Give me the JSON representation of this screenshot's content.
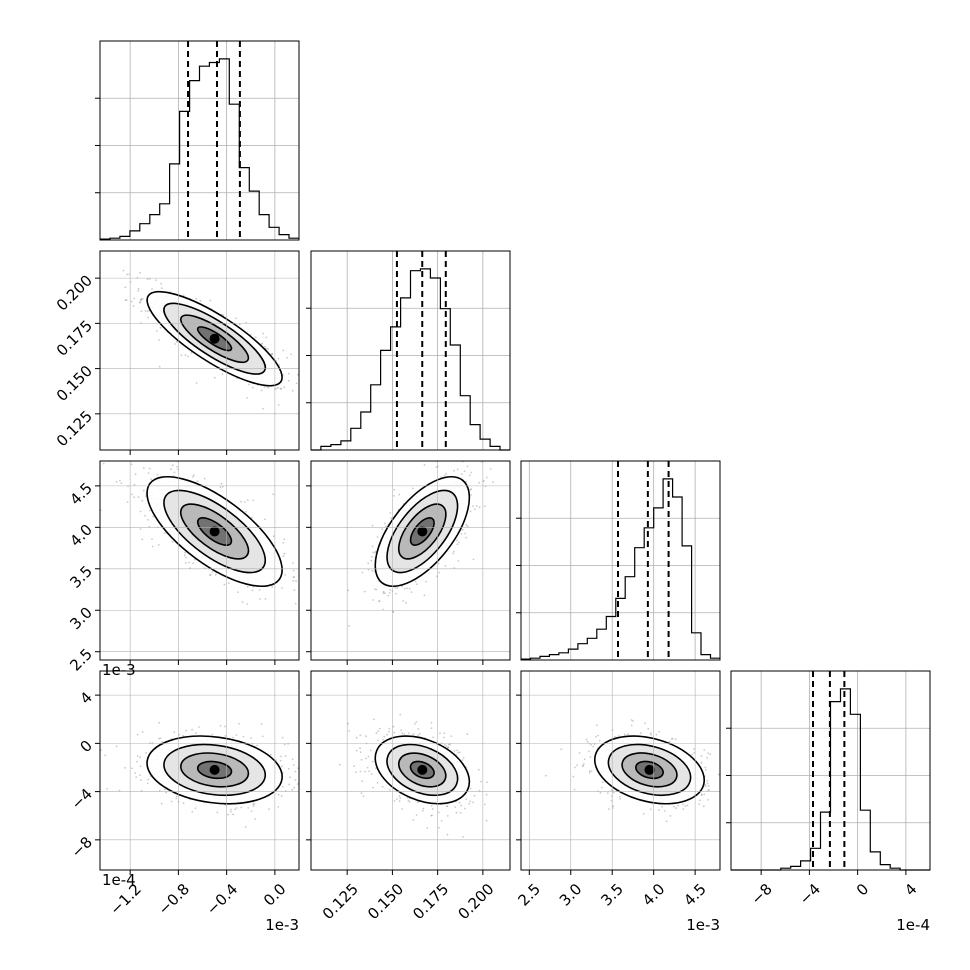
{
  "chart_data": {
    "type": "corner",
    "grid": true,
    "parameters": [
      {
        "offset": "1e-3",
        "range": [
          -1.45,
          0.2
        ],
        "ticks": [
          {
            "v": -1.2,
            "label": "−1.2"
          },
          {
            "v": -0.8,
            "label": "−0.8"
          },
          {
            "v": -0.4,
            "label": "−0.4"
          },
          {
            "v": 0.0,
            "label": "0.0"
          }
        ]
      },
      {
        "offset": "",
        "range": [
          0.105,
          0.215
        ],
        "ticks": [
          {
            "v": 0.125,
            "label": "0.125"
          },
          {
            "v": 0.15,
            "label": "0.150"
          },
          {
            "v": 0.175,
            "label": "0.175"
          },
          {
            "v": 0.2,
            "label": "0.200"
          }
        ]
      },
      {
        "offset": "1e-3",
        "range": [
          2.4,
          4.8
        ],
        "ticks": [
          {
            "v": 2.5,
            "label": "2.5"
          },
          {
            "v": 3.0,
            "label": "3.0"
          },
          {
            "v": 3.5,
            "label": "3.5"
          },
          {
            "v": 4.0,
            "label": "4.0"
          },
          {
            "v": 4.5,
            "label": "4.5"
          }
        ]
      },
      {
        "offset": "1e-4",
        "range": [
          -10.5,
          6
        ],
        "ticks": [
          {
            "v": -8,
            "label": "−8"
          },
          {
            "v": -4,
            "label": "−4"
          },
          {
            "v": 0,
            "label": "0"
          },
          {
            "v": 4,
            "label": "4"
          }
        ]
      }
    ],
    "histograms": [
      {
        "bins": [
          -1.45,
          0.2
        ],
        "counts": [
          0.005,
          0.01,
          0.02,
          0.05,
          0.09,
          0.14,
          0.2,
          0.42,
          0.71,
          0.88,
          0.96,
          0.98,
          1.0,
          0.75,
          0.4,
          0.27,
          0.14,
          0.07,
          0.03,
          0.01
        ],
        "quantiles": [
          -0.72,
          -0.48,
          -0.29
        ]
      },
      {
        "bins": [
          0.105,
          0.215
        ],
        "counts": [
          0.0,
          0.02,
          0.03,
          0.05,
          0.12,
          0.21,
          0.36,
          0.55,
          0.68,
          0.84,
          0.99,
          1.0,
          0.95,
          0.78,
          0.58,
          0.3,
          0.14,
          0.06,
          0.02,
          0.0
        ],
        "quantiles": [
          0.1525,
          0.1665,
          0.1795
        ]
      },
      {
        "bins": [
          2.4,
          4.8
        ],
        "counts": [
          0.005,
          0.01,
          0.02,
          0.03,
          0.04,
          0.06,
          0.09,
          0.12,
          0.17,
          0.24,
          0.34,
          0.46,
          0.62,
          0.73,
          0.84,
          1.0,
          0.9,
          0.63,
          0.15,
          0.03,
          0.01
        ],
        "quantiles": [
          3.57,
          3.93,
          4.18
        ]
      },
      {
        "bins": [
          -10.5,
          6
        ],
        "counts": [
          0.0,
          0.0,
          0.0,
          0.0,
          0.0,
          0.01,
          0.02,
          0.05,
          0.12,
          0.32,
          0.93,
          1.0,
          0.86,
          0.33,
          0.1,
          0.03,
          0.01,
          0.0,
          0.0,
          0.0
        ],
        "quantiles": [
          -3.7,
          -2.3,
          -1.1
        ]
      }
    ],
    "pairs": [
      {
        "x": 0,
        "y": 1,
        "mean": [
          -0.5,
          0.1665
        ],
        "sd": [
          0.28,
          0.013
        ],
        "rho": -0.82
      },
      {
        "x": 0,
        "y": 2,
        "mean": [
          -0.5,
          3.95
        ],
        "sd": [
          0.28,
          0.33
        ],
        "rho": -0.7
      },
      {
        "x": 1,
        "y": 2,
        "mean": [
          0.1665,
          3.95
        ],
        "sd": [
          0.013,
          0.33
        ],
        "rho": 0.62
      },
      {
        "x": 0,
        "y": 3,
        "mean": [
          -0.5,
          -2.2
        ],
        "sd": [
          0.28,
          1.4
        ],
        "rho": -0.2
      },
      {
        "x": 1,
        "y": 3,
        "mean": [
          0.1665,
          -2.2
        ],
        "sd": [
          0.013,
          1.4
        ],
        "rho": -0.35
      },
      {
        "x": 2,
        "y": 3,
        "mean": [
          3.95,
          -2.2
        ],
        "sd": [
          0.33,
          1.4
        ],
        "rho": -0.3
      }
    ]
  }
}
